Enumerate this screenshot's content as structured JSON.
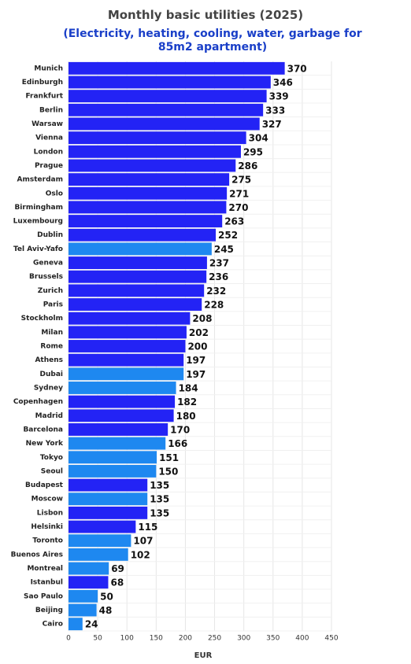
{
  "chart_data": {
    "type": "hbar",
    "title": "Monthly basic utilities (2025)",
    "subtitle": "(Electricity, heating, cooling, water, garbage for 85m2 apartment)",
    "xlabel": "EUR",
    "categories": [
      "Munich",
      "Edinburgh",
      "Frankfurt",
      "Berlin",
      "Warsaw",
      "Vienna",
      "London",
      "Prague",
      "Amsterdam",
      "Oslo",
      "Birmingham",
      "Luxembourg",
      "Dublin",
      "Tel Aviv-Yafo",
      "Geneva",
      "Brussels",
      "Zurich",
      "Paris",
      "Stockholm",
      "Milan",
      "Rome",
      "Athens",
      "Dubai",
      "Sydney",
      "Copenhagen",
      "Madrid",
      "Barcelona",
      "New York",
      "Tokyo",
      "Seoul",
      "Budapest",
      "Moscow",
      "Lisbon",
      "Helsinki",
      "Toronto",
      "Buenos Aires",
      "Montreal",
      "Istanbul",
      "Sao Paulo",
      "Beijing",
      "Cairo"
    ],
    "values": [
      370,
      346,
      339,
      333,
      327,
      304,
      295,
      286,
      275,
      271,
      270,
      263,
      252,
      245,
      237,
      236,
      232,
      228,
      208,
      202,
      200,
      197,
      197,
      184,
      182,
      180,
      170,
      166,
      151,
      150,
      135,
      135,
      135,
      115,
      107,
      102,
      69,
      68,
      50,
      48,
      24
    ],
    "colors": [
      "#2323f5",
      "#2323f5",
      "#2323f5",
      "#2323f5",
      "#2323f5",
      "#2323f5",
      "#2323f5",
      "#2323f5",
      "#2323f5",
      "#2323f5",
      "#2323f5",
      "#2323f5",
      "#2323f5",
      "#1e88f0",
      "#2323f5",
      "#2323f5",
      "#2323f5",
      "#2323f5",
      "#2323f5",
      "#2323f5",
      "#2323f5",
      "#2323f5",
      "#1e88f0",
      "#1e88f0",
      "#2323f5",
      "#2323f5",
      "#2323f5",
      "#1e88f0",
      "#1e88f0",
      "#1e88f0",
      "#2323f5",
      "#1e88f0",
      "#2323f5",
      "#2323f5",
      "#1e88f0",
      "#1e88f0",
      "#1e88f0",
      "#2323f5",
      "#1e88f0",
      "#1e88f0",
      "#1e88f0"
    ],
    "xlim": [
      0,
      450
    ],
    "xticks": [
      0,
      50,
      100,
      150,
      200,
      250,
      300,
      350,
      400,
      450
    ],
    "grid": true
  }
}
